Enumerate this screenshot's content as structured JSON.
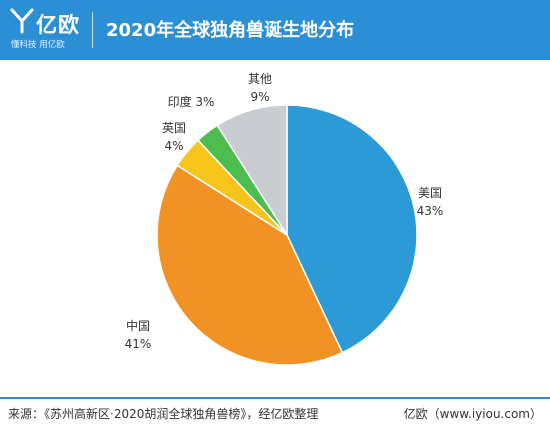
{
  "header": {
    "logo_name": "亿欧",
    "logo_tagline": "懂科技 用亿欧",
    "title": "2020年全球独角兽诞生地分布"
  },
  "chart_data": {
    "type": "pie",
    "title": "2020年全球独角兽诞生地分布",
    "start_angle_deg": 0,
    "direction": "clockwise",
    "slices": [
      {
        "label": "美国",
        "value": 43,
        "value_text": "43%",
        "color": "#2b9ad7"
      },
      {
        "label": "中国",
        "value": 41,
        "value_text": "41%",
        "color": "#f39224"
      },
      {
        "label": "英国",
        "value": 4,
        "value_text": "4%",
        "color": "#f7c41a"
      },
      {
        "label": "印度",
        "value": 3,
        "value_text": "3%",
        "color": "#4dbd4f"
      },
      {
        "label": "其他",
        "value": 9,
        "value_text": "9%",
        "color": "#c9cdd2"
      }
    ]
  },
  "footer": {
    "source": "来源：《苏州高新区·2020胡润全球独角兽榜》，经亿欧整理",
    "credit": "亿欧（www.iyiou.com）"
  }
}
